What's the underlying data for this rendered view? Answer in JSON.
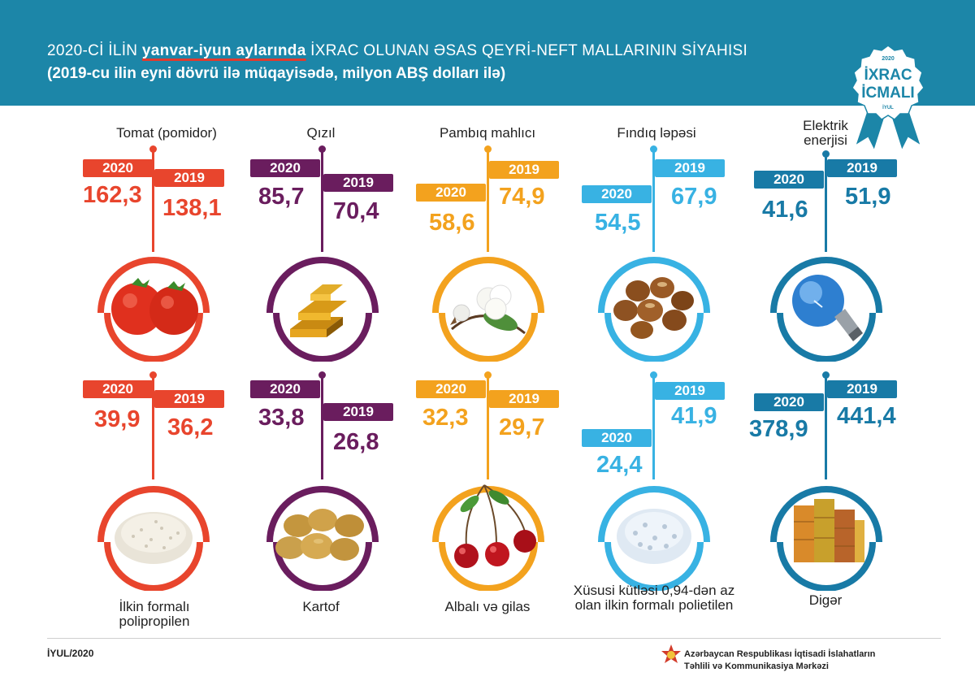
{
  "header": {
    "title_prefix": "2020-Cİ İLİN ",
    "title_highlight": "yanvar-iyun aylarında",
    "title_suffix": " İXRAC OLUNAN ƏSAS QEYRİ-NEFT MALLARININ SİYAHISI",
    "subtitle": "(2019-cu ilin eyni dövrü ilə müqayisədə, milyon ABŞ dolları ilə)"
  },
  "badge": {
    "year": "2020",
    "line1": "İXRAC",
    "line2": "İCMALI",
    "month": "İYUL"
  },
  "year_labels": {
    "y2020": "2020",
    "y2019": "2019"
  },
  "products": [
    {
      "name": "Tomat (pomidor)",
      "v2020": "162,3",
      "v2019": "138,1",
      "color": "#e8452d",
      "icon": "tomato-icon"
    },
    {
      "name": "Qızıl",
      "v2020": "85,7",
      "v2019": "70,4",
      "color": "#6a1d5e",
      "icon": "gold-bars-icon"
    },
    {
      "name": "Pambıq mahlıcı",
      "v2020": "58,6",
      "v2019": "74,9",
      "color": "#f3a21e",
      "icon": "cotton-icon"
    },
    {
      "name": "Fındıq ləpəsi",
      "v2020": "54,5",
      "v2019": "67,9",
      "color": "#38b2e3",
      "icon": "hazelnut-icon"
    },
    {
      "name": "Elektrik enerjisi",
      "v2020": "41,6",
      "v2019": "51,9",
      "color": "#187aa6",
      "icon": "light-bulb-icon"
    },
    {
      "name": "İlkin formalı polipropilen",
      "v2020": "39,9",
      "v2019": "36,2",
      "color": "#e8452d",
      "icon": "polypropylene-granules-icon"
    },
    {
      "name": "Kartof",
      "v2020": "33,8",
      "v2019": "26,8",
      "color": "#6a1d5e",
      "icon": "potato-icon"
    },
    {
      "name": "Albalı və gilas",
      "v2020": "32,3",
      "v2019": "29,7",
      "color": "#f3a21e",
      "icon": "cherry-icon"
    },
    {
      "name": "Xüsusi kütləsi 0,94-dən az olan ilkin formalı polietilen",
      "v2020": "24,4",
      "v2019": "41,9",
      "color": "#38b2e3",
      "icon": "polyethylene-granules-icon"
    },
    {
      "name": "Digər",
      "v2020": "378,9",
      "v2019": "441,4",
      "color": "#187aa6",
      "icon": "containers-icon"
    }
  ],
  "footer": {
    "date": "İYUL/2020",
    "org_line1": "Azərbaycan Respublikası İqtisadi İslahatların",
    "org_line2": "Təhlili və Kommunikasiya Mərkəzi"
  }
}
